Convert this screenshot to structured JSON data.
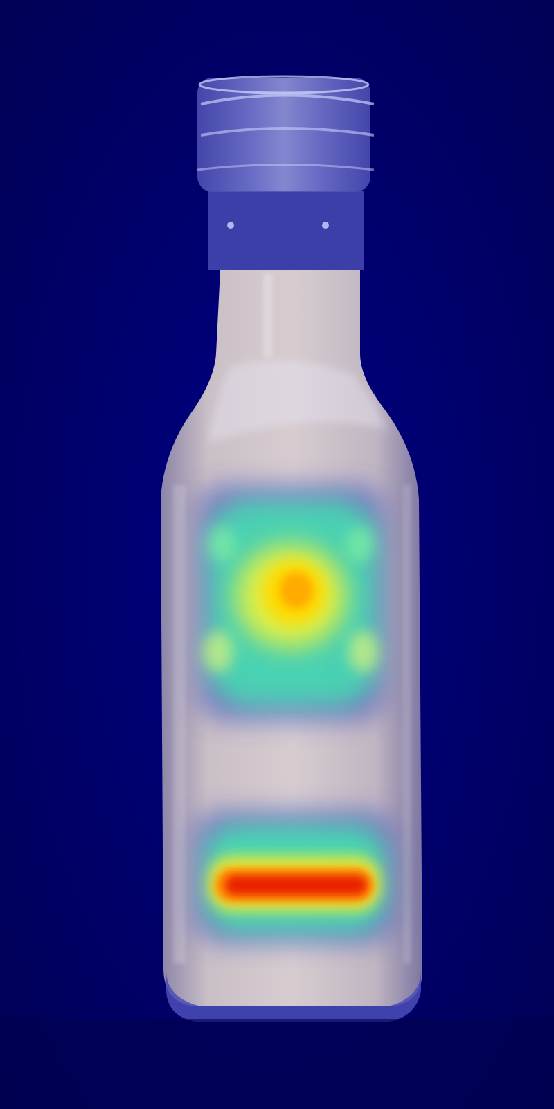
{
  "image": {
    "subject": "glass-bottle-with-milky-liquid",
    "overlay": "attention-heatmap",
    "background_color": "#00006a",
    "colormap": [
      "#00006a",
      "#3a3ac8",
      "#3fe0b0",
      "#ffe800",
      "#ff8a00",
      "#e81c00"
    ],
    "heatmap_regions": [
      {
        "id": "upper-label-region",
        "peak_color": "#ffb400",
        "peak_intensity": 0.8
      },
      {
        "id": "lower-label-region",
        "peak_color": "#e81c00",
        "peak_intensity": 1.0
      }
    ]
  }
}
